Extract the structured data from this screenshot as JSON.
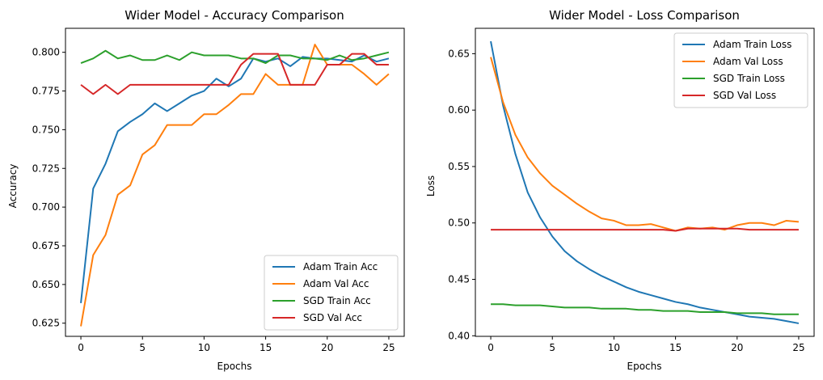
{
  "chart_data": [
    {
      "type": "line",
      "title": "Wider Model - Accuracy Comparison",
      "xlabel": "Epochs",
      "ylabel": "Accuracy",
      "xlim": [
        -1.25,
        26.25
      ],
      "ylim": [
        0.6165,
        0.8155
      ],
      "xticks": [
        0,
        5,
        10,
        15,
        20,
        25
      ],
      "yticks": [
        0.625,
        0.65,
        0.675,
        0.7,
        0.725,
        0.75,
        0.775,
        0.8
      ],
      "ytick_labels": [
        "0.625",
        "0.650",
        "0.675",
        "0.700",
        "0.725",
        "0.750",
        "0.775",
        "0.800"
      ],
      "legend_loc": "lower-right",
      "x": [
        0,
        1,
        2,
        3,
        4,
        5,
        6,
        7,
        8,
        9,
        10,
        11,
        12,
        13,
        14,
        15,
        16,
        17,
        18,
        19,
        20,
        21,
        22,
        23,
        24,
        25
      ],
      "series": [
        {
          "name": "Adam Train Acc",
          "color": "#1f77b4",
          "values": [
            0.638,
            0.712,
            0.728,
            0.749,
            0.755,
            0.76,
            0.767,
            0.762,
            0.767,
            0.772,
            0.775,
            0.783,
            0.778,
            0.783,
            0.796,
            0.794,
            0.796,
            0.791,
            0.797,
            0.796,
            0.796,
            0.795,
            0.794,
            0.798,
            0.794,
            0.796
          ]
        },
        {
          "name": "Adam Val Acc",
          "color": "#ff7f0e",
          "values": [
            0.623,
            0.669,
            0.682,
            0.708,
            0.714,
            0.734,
            0.74,
            0.753,
            0.753,
            0.753,
            0.76,
            0.76,
            0.766,
            0.773,
            0.773,
            0.786,
            0.779,
            0.779,
            0.779,
            0.805,
            0.792,
            0.792,
            0.792,
            0.786,
            0.779,
            0.786
          ]
        },
        {
          "name": "SGD Train Acc",
          "color": "#2ca02c",
          "values": [
            0.793,
            0.796,
            0.801,
            0.796,
            0.798,
            0.795,
            0.795,
            0.798,
            0.795,
            0.8,
            0.798,
            0.798,
            0.798,
            0.796,
            0.796,
            0.793,
            0.798,
            0.798,
            0.796,
            0.796,
            0.795,
            0.798,
            0.795,
            0.796,
            0.798,
            0.8
          ]
        },
        {
          "name": "SGD Val Acc",
          "color": "#d62728",
          "values": [
            0.779,
            0.773,
            0.779,
            0.773,
            0.779,
            0.779,
            0.779,
            0.779,
            0.779,
            0.779,
            0.779,
            0.779,
            0.779,
            0.792,
            0.799,
            0.799,
            0.799,
            0.779,
            0.779,
            0.779,
            0.792,
            0.792,
            0.799,
            0.799,
            0.792,
            0.792
          ]
        }
      ]
    },
    {
      "type": "line",
      "title": "Wider Model - Loss Comparison",
      "xlabel": "Epochs",
      "ylabel": "Loss",
      "xlim": [
        -1.25,
        26.25
      ],
      "ylim": [
        0.3995,
        0.6725
      ],
      "xticks": [
        0,
        5,
        10,
        15,
        20,
        25
      ],
      "yticks": [
        0.4,
        0.45,
        0.5,
        0.55,
        0.6,
        0.65
      ],
      "ytick_labels": [
        "0.40",
        "0.45",
        "0.50",
        "0.55",
        "0.60",
        "0.65"
      ],
      "legend_loc": "upper-right",
      "x": [
        0,
        1,
        2,
        3,
        4,
        5,
        6,
        7,
        8,
        9,
        10,
        11,
        12,
        13,
        14,
        15,
        16,
        17,
        18,
        19,
        20,
        21,
        22,
        23,
        24,
        25
      ],
      "series": [
        {
          "name": "Adam Train Loss",
          "color": "#1f77b4",
          "values": [
            0.661,
            0.604,
            0.561,
            0.527,
            0.505,
            0.488,
            0.475,
            0.466,
            0.459,
            0.453,
            0.448,
            0.443,
            0.439,
            0.436,
            0.433,
            0.43,
            0.428,
            0.425,
            0.423,
            0.421,
            0.419,
            0.417,
            0.416,
            0.415,
            0.413,
            0.411
          ]
        },
        {
          "name": "Adam Val Loss",
          "color": "#ff7f0e",
          "values": [
            0.647,
            0.607,
            0.578,
            0.558,
            0.544,
            0.533,
            0.525,
            0.517,
            0.51,
            0.504,
            0.502,
            0.498,
            0.498,
            0.499,
            0.496,
            0.493,
            0.496,
            0.495,
            0.496,
            0.494,
            0.498,
            0.5,
            0.5,
            0.498,
            0.502,
            0.501
          ]
        },
        {
          "name": "SGD Train Loss",
          "color": "#2ca02c",
          "values": [
            0.428,
            0.428,
            0.427,
            0.427,
            0.427,
            0.426,
            0.425,
            0.425,
            0.425,
            0.424,
            0.424,
            0.424,
            0.423,
            0.423,
            0.422,
            0.422,
            0.422,
            0.421,
            0.421,
            0.421,
            0.42,
            0.42,
            0.42,
            0.419,
            0.419,
            0.419
          ]
        },
        {
          "name": "SGD Val Loss",
          "color": "#d62728",
          "values": [
            0.494,
            0.494,
            0.494,
            0.494,
            0.494,
            0.494,
            0.494,
            0.494,
            0.494,
            0.494,
            0.494,
            0.494,
            0.494,
            0.494,
            0.494,
            0.493,
            0.495,
            0.495,
            0.495,
            0.495,
            0.495,
            0.494,
            0.494,
            0.494,
            0.494,
            0.494
          ]
        }
      ]
    }
  ]
}
